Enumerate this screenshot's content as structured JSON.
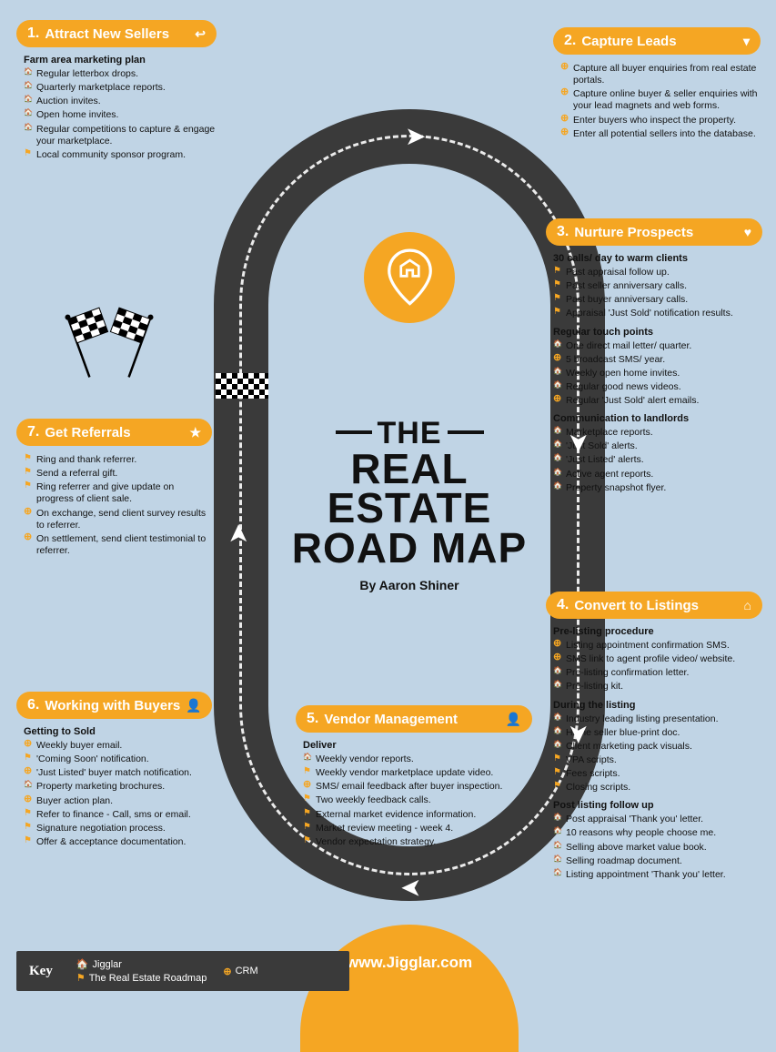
{
  "colors": {
    "bg": "#c0d4e5",
    "accent": "#f5a623",
    "road": "#3a3a3a",
    "text": "#111111",
    "white": "#ffffff"
  },
  "title": {
    "line1": "THE",
    "line2": "REAL ESTATE",
    "line3": "ROAD MAP",
    "byline": "By Aaron Shiner"
  },
  "footer": {
    "url": "www.Jigglar.com"
  },
  "key": {
    "label": "Key",
    "items": [
      {
        "icon": "jig",
        "label": "Jigglar"
      },
      {
        "icon": "crm",
        "label": "CRM"
      },
      {
        "icon": "rm",
        "label": "The Real Estate Roadmap"
      }
    ]
  },
  "sections": [
    {
      "num": "1.",
      "title": "Attract New Sellers",
      "icon": "↩",
      "groups": [
        {
          "heading": "Farm area marketing plan",
          "items": [
            {
              "t": "jig",
              "text": "Regular letterbox drops."
            },
            {
              "t": "jig",
              "text": "Quarterly marketplace reports."
            },
            {
              "t": "jig",
              "text": "Auction invites."
            },
            {
              "t": "jig",
              "text": "Open home invites."
            },
            {
              "t": "jig",
              "text": "Regular competitions to capture & engage your marketplace."
            },
            {
              "t": "rm",
              "text": "Local community sponsor program."
            }
          ]
        }
      ]
    },
    {
      "num": "2.",
      "title": "Capture Leads",
      "icon": "▾",
      "groups": [
        {
          "heading": "",
          "items": [
            {
              "t": "crm",
              "text": "Capture all buyer enquiries from real estate portals."
            },
            {
              "t": "crm",
              "text": "Capture online buyer & seller enquiries with your lead magnets and web forms."
            },
            {
              "t": "crm",
              "text": "Enter buyers who inspect the property."
            },
            {
              "t": "crm",
              "text": "Enter all potential sellers into the database."
            }
          ]
        }
      ]
    },
    {
      "num": "3.",
      "title": "Nurture Prospects",
      "icon": "♥",
      "groups": [
        {
          "heading": "30 calls/ day to warm clients",
          "items": [
            {
              "t": "rm",
              "text": "Past appraisal follow up."
            },
            {
              "t": "rm",
              "text": "Past seller anniversary calls."
            },
            {
              "t": "rm",
              "text": "Past buyer anniversary calls."
            },
            {
              "t": "rm",
              "text": "Appraisal 'Just Sold' notification results."
            }
          ]
        },
        {
          "heading": "Regular touch points",
          "items": [
            {
              "t": "jig",
              "text": "One direct mail letter/ quarter."
            },
            {
              "t": "crm",
              "text": "5 broadcast SMS/ year."
            },
            {
              "t": "jig",
              "text": "Weekly open home invites."
            },
            {
              "t": "jig",
              "text": "Regular good news videos."
            },
            {
              "t": "crm",
              "text": "Regular 'Just Sold' alert emails."
            }
          ]
        },
        {
          "heading": "Communication to landlords",
          "items": [
            {
              "t": "jig",
              "text": "Marketplace reports."
            },
            {
              "t": "jig",
              "text": "'Just Sold' alerts."
            },
            {
              "t": "jig",
              "text": "'Just Listed' alerts."
            },
            {
              "t": "jig",
              "text": "Active agent reports."
            },
            {
              "t": "jig",
              "text": "Property snapshot flyer."
            }
          ]
        }
      ]
    },
    {
      "num": "4.",
      "title": "Convert to Listings",
      "icon": "⌂",
      "groups": [
        {
          "heading": "Pre-listing procedure",
          "items": [
            {
              "t": "crm",
              "text": "Listing appointment confirmation SMS."
            },
            {
              "t": "crm",
              "text": "SMS link to agent profile video/ website."
            },
            {
              "t": "jig",
              "text": "Pre-listing confirmation letter."
            },
            {
              "t": "jig",
              "text": "Pre-listing kit."
            }
          ]
        },
        {
          "heading": "During the listing",
          "items": [
            {
              "t": "jig",
              "text": "Industry leading listing presentation."
            },
            {
              "t": "jig",
              "text": "Home seller blue-print doc."
            },
            {
              "t": "jig",
              "text": "Client marketing pack visuals."
            },
            {
              "t": "rm",
              "text": "VPA scripts."
            },
            {
              "t": "rm",
              "text": "Fees scripts."
            },
            {
              "t": "rm",
              "text": "Closing scripts."
            }
          ]
        },
        {
          "heading": "Post listing follow up",
          "items": [
            {
              "t": "jig",
              "text": "Post appraisal 'Thank you' letter."
            },
            {
              "t": "jig",
              "text": "10 reasons why people choose me."
            },
            {
              "t": "jig",
              "text": "Selling above market value book."
            },
            {
              "t": "jig",
              "text": "Selling roadmap document."
            },
            {
              "t": "jig",
              "text": "Listing appointment 'Thank you' letter."
            }
          ]
        }
      ]
    },
    {
      "num": "5.",
      "title": "Vendor Management",
      "icon": "👤",
      "groups": [
        {
          "heading": "Deliver",
          "items": [
            {
              "t": "jig",
              "text": "Weekly vendor reports."
            },
            {
              "t": "rm",
              "text": "Weekly vendor marketplace update video."
            },
            {
              "t": "crm",
              "text": "SMS/ email feedback after buyer inspection."
            },
            {
              "t": "rm",
              "text": "Two weekly feedback calls."
            },
            {
              "t": "rm",
              "text": "External market evidence information."
            },
            {
              "t": "rm",
              "text": "Market review meeting - week 4."
            },
            {
              "t": "rm",
              "text": "Vendor expectation strategy."
            }
          ]
        }
      ]
    },
    {
      "num": "6.",
      "title": "Working with Buyers",
      "icon": "👤",
      "groups": [
        {
          "heading": "Getting to Sold",
          "items": [
            {
              "t": "crm",
              "text": "Weekly buyer email."
            },
            {
              "t": "rm",
              "text": "'Coming Soon' notification."
            },
            {
              "t": "crm",
              "text": "'Just Listed' buyer match notification."
            },
            {
              "t": "jig",
              "text": "Property marketing brochures."
            },
            {
              "t": "crm",
              "text": "Buyer action plan."
            },
            {
              "t": "rm",
              "text": "Refer to finance - Call, sms or email."
            },
            {
              "t": "rm",
              "text": "Signature negotiation process."
            },
            {
              "t": "rm",
              "text": "Offer & acceptance documentation."
            }
          ]
        }
      ]
    },
    {
      "num": "7.",
      "title": "Get Referrals",
      "icon": "★",
      "groups": [
        {
          "heading": "",
          "items": [
            {
              "t": "rm",
              "text": "Ring and thank referrer."
            },
            {
              "t": "rm",
              "text": "Send a referral gift."
            },
            {
              "t": "rm",
              "text": "Ring referrer and give update on progress of client sale."
            },
            {
              "t": "crm",
              "text": "On exchange, send client survey results to referrer."
            },
            {
              "t": "crm",
              "text": "On settlement, send client testimonial to referrer."
            }
          ]
        }
      ]
    }
  ]
}
